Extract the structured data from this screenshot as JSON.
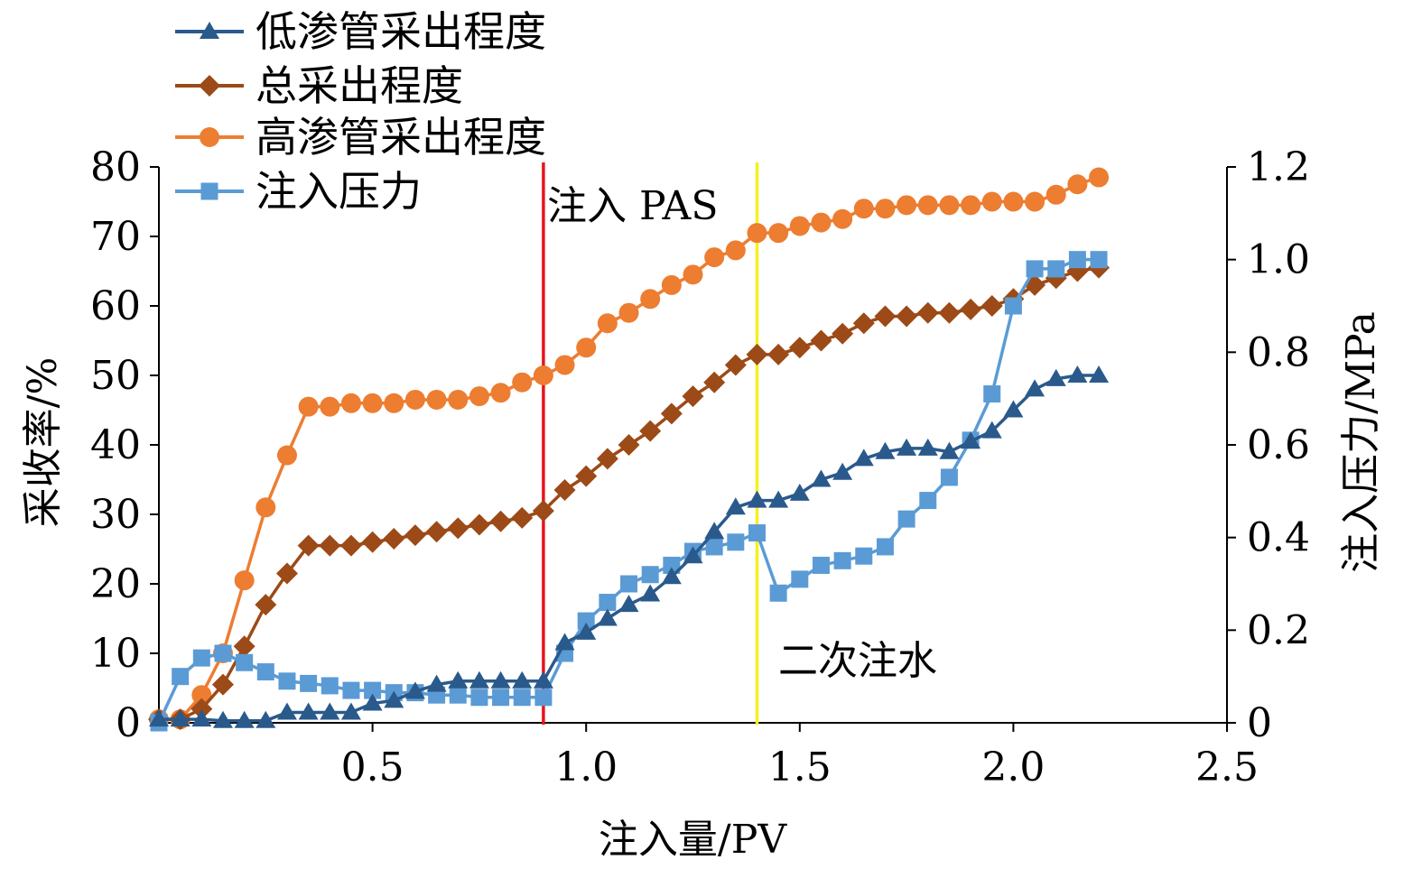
{
  "chart_data": {
    "type": "line",
    "xlabel": "注入量/PV",
    "ylabel_left": "采收率/%",
    "ylabel_right": "注入压力/MPa",
    "xlim": [
      0,
      2.5
    ],
    "ylim_left": [
      0,
      80
    ],
    "ylim_right": [
      0,
      1.2
    ],
    "x_ticks": [
      "0.5",
      "1.0",
      "1.5",
      "2.0",
      "2.5"
    ],
    "x_tick_values": [
      0.5,
      1.0,
      1.5,
      2.0,
      2.5
    ],
    "y_left_ticks": [
      "0",
      "10",
      "20",
      "30",
      "40",
      "50",
      "60",
      "70",
      "80"
    ],
    "y_left_tick_values": [
      0,
      10,
      20,
      30,
      40,
      50,
      60,
      70,
      80
    ],
    "y_right_ticks": [
      "0",
      "0.2",
      "0.4",
      "0.6",
      "0.8",
      "1.0",
      "1.2"
    ],
    "y_right_tick_values": [
      0,
      0.2,
      0.4,
      0.6,
      0.8,
      1.0,
      1.2
    ],
    "grid": false,
    "legend_position": "top-left",
    "annotations": [
      {
        "text": "注入 PAS",
        "x": 0.9,
        "color": "#e8141c"
      },
      {
        "text": "二次注水",
        "x": 1.4,
        "color": "#f5f01e"
      }
    ],
    "series": [
      {
        "name": "低渗管采出程度",
        "axis": "left",
        "marker": "triangle",
        "color": "#2a5a8c",
        "x": [
          0,
          0.05,
          0.1,
          0.15,
          0.2,
          0.25,
          0.3,
          0.35,
          0.4,
          0.45,
          0.5,
          0.55,
          0.6,
          0.65,
          0.7,
          0.75,
          0.8,
          0.85,
          0.9,
          0.95,
          1.0,
          1.05,
          1.1,
          1.15,
          1.2,
          1.25,
          1.3,
          1.35,
          1.4,
          1.45,
          1.5,
          1.55,
          1.6,
          1.65,
          1.7,
          1.75,
          1.8,
          1.85,
          1.9,
          1.95,
          2.0,
          2.05,
          2.1,
          2.15,
          2.2
        ],
        "values": [
          0.5,
          0.5,
          0.5,
          0.3,
          0.3,
          0.3,
          1.5,
          1.5,
          1.5,
          1.5,
          2.8,
          3.2,
          4.5,
          5.5,
          6.0,
          6.0,
          6.0,
          6.0,
          6.0,
          11.5,
          13.0,
          15.0,
          17.0,
          18.5,
          21.0,
          24.0,
          27.5,
          31.0,
          32.0,
          32.0,
          33.0,
          35.0,
          36.0,
          38.0,
          39.0,
          39.5,
          39.5,
          39.0,
          40.5,
          42.0,
          45.0,
          48.0,
          49.5,
          50.0,
          50.0
        ]
      },
      {
        "name": "总采出程度",
        "axis": "left",
        "marker": "diamond",
        "color": "#9c4a17",
        "x": [
          0,
          0.05,
          0.1,
          0.15,
          0.2,
          0.25,
          0.3,
          0.35,
          0.4,
          0.45,
          0.5,
          0.55,
          0.6,
          0.65,
          0.7,
          0.75,
          0.8,
          0.85,
          0.9,
          0.95,
          1.0,
          1.05,
          1.1,
          1.15,
          1.2,
          1.25,
          1.3,
          1.35,
          1.4,
          1.45,
          1.5,
          1.55,
          1.6,
          1.65,
          1.7,
          1.75,
          1.8,
          1.85,
          1.9,
          1.95,
          2.0,
          2.05,
          2.1,
          2.15,
          2.2
        ],
        "values": [
          0.5,
          0.5,
          2.0,
          5.5,
          11.0,
          17.0,
          21.5,
          25.5,
          25.5,
          25.5,
          26.0,
          26.5,
          27.0,
          27.5,
          28.0,
          28.5,
          29.0,
          29.5,
          30.5,
          33.5,
          35.5,
          38.0,
          40.0,
          42.0,
          44.5,
          47.0,
          49.0,
          51.5,
          53.0,
          53.0,
          54.0,
          55.0,
          56.0,
          57.5,
          58.5,
          58.5,
          59.0,
          59.0,
          59.5,
          60.0,
          61.0,
          63.0,
          64.0,
          65.0,
          65.5
        ]
      },
      {
        "name": "高渗管采出程度",
        "axis": "left",
        "marker": "circle",
        "color": "#ed7d31",
        "x": [
          0,
          0.05,
          0.1,
          0.15,
          0.2,
          0.25,
          0.3,
          0.35,
          0.4,
          0.45,
          0.5,
          0.55,
          0.6,
          0.65,
          0.7,
          0.75,
          0.8,
          0.85,
          0.9,
          0.95,
          1.0,
          1.05,
          1.1,
          1.15,
          1.2,
          1.25,
          1.3,
          1.35,
          1.4,
          1.45,
          1.5,
          1.55,
          1.6,
          1.65,
          1.7,
          1.75,
          1.8,
          1.85,
          1.9,
          1.95,
          2.0,
          2.05,
          2.1,
          2.15,
          2.2
        ],
        "values": [
          0.5,
          0.5,
          4.0,
          10.0,
          20.5,
          31.0,
          38.5,
          45.5,
          45.5,
          46.0,
          46.0,
          46.0,
          46.5,
          46.5,
          46.5,
          47.0,
          47.5,
          49.0,
          50.0,
          51.5,
          54.0,
          57.5,
          59.0,
          61.0,
          63.0,
          64.5,
          67.0,
          68.0,
          70.5,
          70.5,
          71.5,
          72.0,
          72.5,
          74.0,
          74.0,
          74.5,
          74.5,
          74.5,
          74.5,
          75.0,
          75.0,
          75.0,
          76.0,
          77.5,
          78.5
        ]
      },
      {
        "name": "注入压力",
        "axis": "right",
        "marker": "square",
        "color": "#5b9bd5",
        "x": [
          0,
          0.05,
          0.1,
          0.15,
          0.2,
          0.25,
          0.3,
          0.35,
          0.4,
          0.45,
          0.5,
          0.55,
          0.6,
          0.65,
          0.7,
          0.75,
          0.8,
          0.85,
          0.9,
          0.95,
          1.0,
          1.05,
          1.1,
          1.15,
          1.2,
          1.25,
          1.3,
          1.35,
          1.4,
          1.45,
          1.5,
          1.55,
          1.6,
          1.65,
          1.7,
          1.75,
          1.8,
          1.85,
          1.9,
          1.95,
          2.0,
          2.05,
          2.1,
          2.15,
          2.2
        ],
        "values": [
          0.0,
          0.1,
          0.14,
          0.15,
          0.13,
          0.11,
          0.09,
          0.085,
          0.08,
          0.07,
          0.07,
          0.065,
          0.065,
          0.06,
          0.06,
          0.055,
          0.055,
          0.055,
          0.055,
          0.15,
          0.22,
          0.26,
          0.3,
          0.32,
          0.34,
          0.37,
          0.38,
          0.39,
          0.41,
          0.28,
          0.31,
          0.34,
          0.35,
          0.36,
          0.38,
          0.44,
          0.48,
          0.53,
          0.61,
          0.71,
          0.9,
          0.98,
          0.98,
          1.0,
          1.0
        ]
      }
    ]
  }
}
